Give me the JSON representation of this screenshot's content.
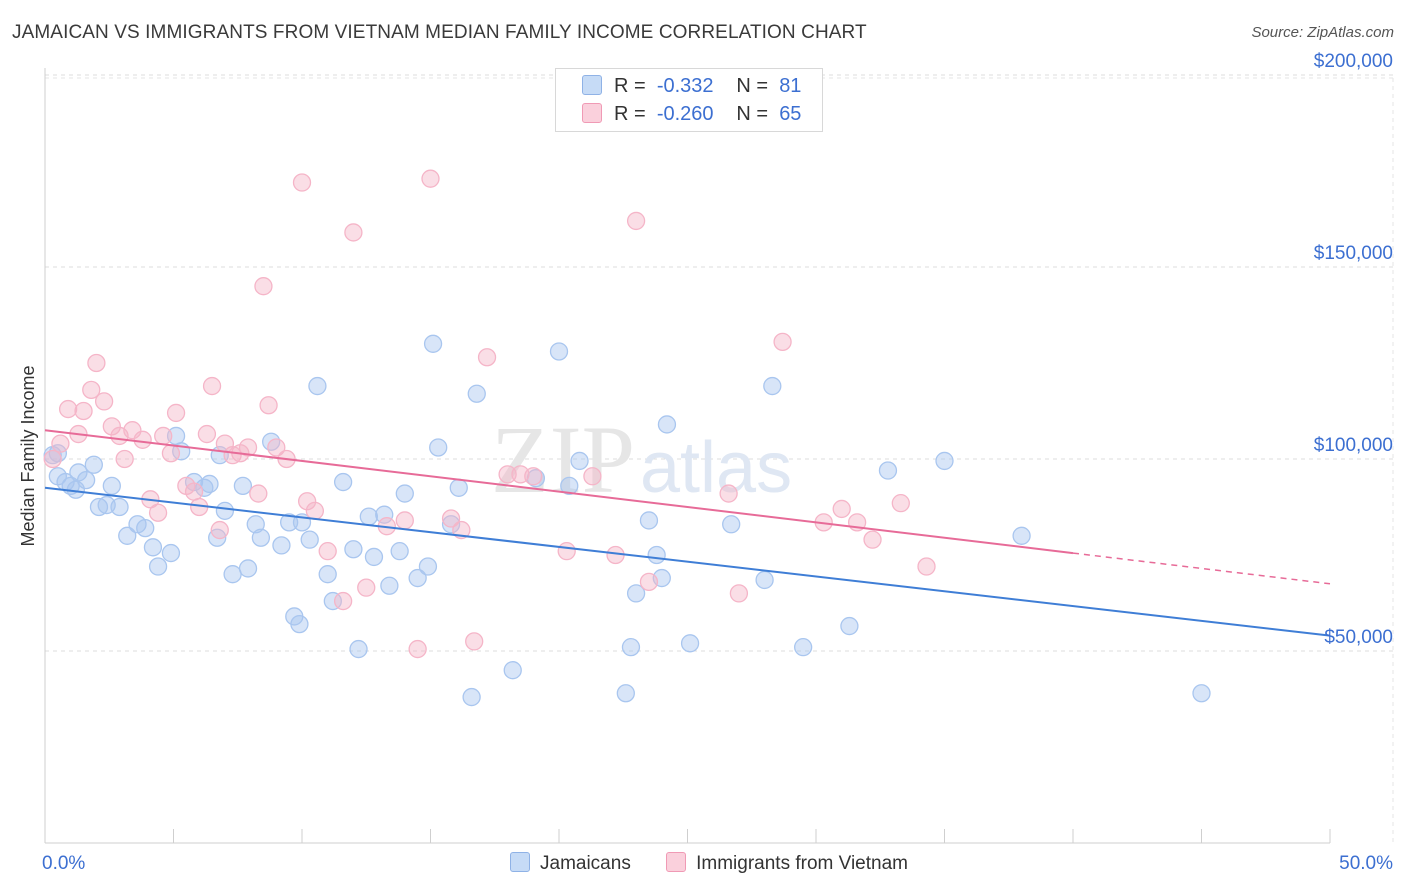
{
  "header": {
    "title": "JAMAICAN VS IMMIGRANTS FROM VIETNAM MEDIAN FAMILY INCOME CORRELATION CHART",
    "source": "Source: ZipAtlas.com"
  },
  "watermark": {
    "zip": "ZIP",
    "atlas": "atlas"
  },
  "legend": {
    "rows": [
      {
        "r_label": "R =",
        "r_value": "-0.332",
        "n_label": "N =",
        "n_value": "81",
        "color": "#a9c6ef"
      },
      {
        "r_label": "R =",
        "r_value": "-0.260",
        "n_label": "N =",
        "n_value": "65",
        "color": "#f5b5c8"
      }
    ]
  },
  "bottom_legend": [
    "Jamaicans",
    "Immigrants from Vietnam"
  ],
  "chart_data": {
    "type": "scatter",
    "title": "JAMAICAN VS IMMIGRANTS FROM VIETNAM MEDIAN FAMILY INCOME CORRELATION CHART",
    "xlabel": "",
    "ylabel": "Median Family Income",
    "xlim": [
      0,
      50
    ],
    "ylim": [
      0,
      210000
    ],
    "x_tick_labels": [
      "0.0%",
      "50.0%"
    ],
    "y_ticks": [
      50000,
      100000,
      150000,
      200000
    ],
    "y_tick_labels": [
      "$50,000",
      "$100,000",
      "$150,000",
      "$200,000"
    ],
    "grid": true,
    "series": [
      {
        "name": "Jamaicans",
        "color": "#3f7ed6",
        "fill": "#a9c6ef",
        "trend": {
          "x": [
            0,
            50
          ],
          "y": [
            92500,
            54000
          ]
        },
        "points": [
          [
            0.3,
            101000
          ],
          [
            0.5,
            95500
          ],
          [
            0.8,
            94000
          ],
          [
            1.0,
            93000
          ],
          [
            1.2,
            92000
          ],
          [
            1.3,
            96500
          ],
          [
            1.6,
            94500
          ],
          [
            1.9,
            98500
          ],
          [
            2.1,
            87500
          ],
          [
            2.4,
            88000
          ],
          [
            2.6,
            93000
          ],
          [
            2.9,
            87500
          ],
          [
            3.2,
            80000
          ],
          [
            3.6,
            83000
          ],
          [
            3.9,
            82000
          ],
          [
            4.2,
            77000
          ],
          [
            4.4,
            72000
          ],
          [
            4.9,
            75500
          ],
          [
            5.1,
            106000
          ],
          [
            5.3,
            102000
          ],
          [
            5.8,
            94000
          ],
          [
            6.2,
            92500
          ],
          [
            6.8,
            101000
          ],
          [
            6.4,
            93500
          ],
          [
            6.7,
            79500
          ],
          [
            7.0,
            86500
          ],
          [
            7.3,
            70000
          ],
          [
            7.7,
            93000
          ],
          [
            7.9,
            71500
          ],
          [
            8.2,
            83000
          ],
          [
            8.4,
            79500
          ],
          [
            8.8,
            104500
          ],
          [
            9.2,
            77500
          ],
          [
            9.5,
            83500
          ],
          [
            9.7,
            59000
          ],
          [
            9.9,
            57000
          ],
          [
            10.3,
            79000
          ],
          [
            10.6,
            119000
          ],
          [
            11.0,
            70000
          ],
          [
            11.2,
            63000
          ],
          [
            11.6,
            94000
          ],
          [
            12.0,
            76500
          ],
          [
            12.2,
            50500
          ],
          [
            12.6,
            85000
          ],
          [
            12.8,
            74500
          ],
          [
            13.2,
            85500
          ],
          [
            13.4,
            67000
          ],
          [
            13.8,
            76000
          ],
          [
            14.0,
            91000
          ],
          [
            14.5,
            69000
          ],
          [
            14.9,
            72000
          ],
          [
            15.1,
            130000
          ],
          [
            15.3,
            103000
          ],
          [
            15.8,
            83000
          ],
          [
            16.1,
            92500
          ],
          [
            16.6,
            38000
          ],
          [
            16.8,
            117000
          ],
          [
            18.2,
            45000
          ],
          [
            19.1,
            95000
          ],
          [
            20.0,
            128000
          ],
          [
            20.4,
            93000
          ],
          [
            20.8,
            99500
          ],
          [
            22.6,
            39000
          ],
          [
            22.8,
            51000
          ],
          [
            23.0,
            65000
          ],
          [
            23.5,
            84000
          ],
          [
            23.8,
            75000
          ],
          [
            24.0,
            69000
          ],
          [
            24.2,
            109000
          ],
          [
            25.1,
            52000
          ],
          [
            26.7,
            83000
          ],
          [
            28.0,
            68500
          ],
          [
            28.3,
            119000
          ],
          [
            29.5,
            51000
          ],
          [
            31.3,
            56500
          ],
          [
            32.8,
            97000
          ],
          [
            35.0,
            99500
          ],
          [
            38.0,
            80000
          ],
          [
            45.0,
            39000
          ],
          [
            0.5,
            101500
          ],
          [
            10.0,
            83500
          ]
        ]
      },
      {
        "name": "Immigrants from Vietnam",
        "color": "#e76b98",
        "fill": "#f5b5c8",
        "trend": {
          "x": [
            0,
            40
          ],
          "y": [
            107500,
            75500
          ]
        },
        "trend_dashed": {
          "x": [
            40,
            50
          ],
          "y": [
            75500,
            67500
          ]
        },
        "points": [
          [
            0.3,
            100000
          ],
          [
            0.6,
            104000
          ],
          [
            0.9,
            113000
          ],
          [
            1.3,
            106500
          ],
          [
            1.5,
            112500
          ],
          [
            1.8,
            118000
          ],
          [
            2.0,
            125000
          ],
          [
            2.3,
            115000
          ],
          [
            2.6,
            108500
          ],
          [
            2.9,
            106000
          ],
          [
            3.1,
            100000
          ],
          [
            3.4,
            107500
          ],
          [
            3.8,
            105000
          ],
          [
            4.1,
            89500
          ],
          [
            4.4,
            86000
          ],
          [
            4.6,
            106000
          ],
          [
            4.9,
            101500
          ],
          [
            5.1,
            112000
          ],
          [
            5.5,
            93000
          ],
          [
            5.8,
            91500
          ],
          [
            6.0,
            87500
          ],
          [
            6.3,
            106500
          ],
          [
            6.5,
            119000
          ],
          [
            6.8,
            81500
          ],
          [
            7.0,
            104000
          ],
          [
            7.3,
            101000
          ],
          [
            7.6,
            101500
          ],
          [
            7.9,
            103000
          ],
          [
            8.3,
            91000
          ],
          [
            8.5,
            145000
          ],
          [
            8.7,
            114000
          ],
          [
            9.0,
            103000
          ],
          [
            9.4,
            100000
          ],
          [
            10.0,
            172000
          ],
          [
            10.2,
            89000
          ],
          [
            10.5,
            86500
          ],
          [
            11.0,
            76000
          ],
          [
            11.6,
            63000
          ],
          [
            12.0,
            159000
          ],
          [
            12.5,
            66500
          ],
          [
            13.3,
            82500
          ],
          [
            14.0,
            84000
          ],
          [
            14.5,
            50500
          ],
          [
            15.0,
            173000
          ],
          [
            15.8,
            84500
          ],
          [
            16.2,
            81500
          ],
          [
            16.7,
            52500
          ],
          [
            17.2,
            126500
          ],
          [
            18.0,
            96000
          ],
          [
            18.5,
            96000
          ],
          [
            19.0,
            95500
          ],
          [
            20.3,
            76000
          ],
          [
            21.3,
            95500
          ],
          [
            22.2,
            75000
          ],
          [
            23.0,
            162000
          ],
          [
            23.5,
            68000
          ],
          [
            26.6,
            91000
          ],
          [
            27.0,
            65000
          ],
          [
            28.7,
            130500
          ],
          [
            30.3,
            83500
          ],
          [
            31.0,
            87000
          ],
          [
            31.6,
            83500
          ],
          [
            32.2,
            79000
          ],
          [
            33.3,
            88500
          ],
          [
            34.3,
            72000
          ]
        ]
      }
    ]
  }
}
